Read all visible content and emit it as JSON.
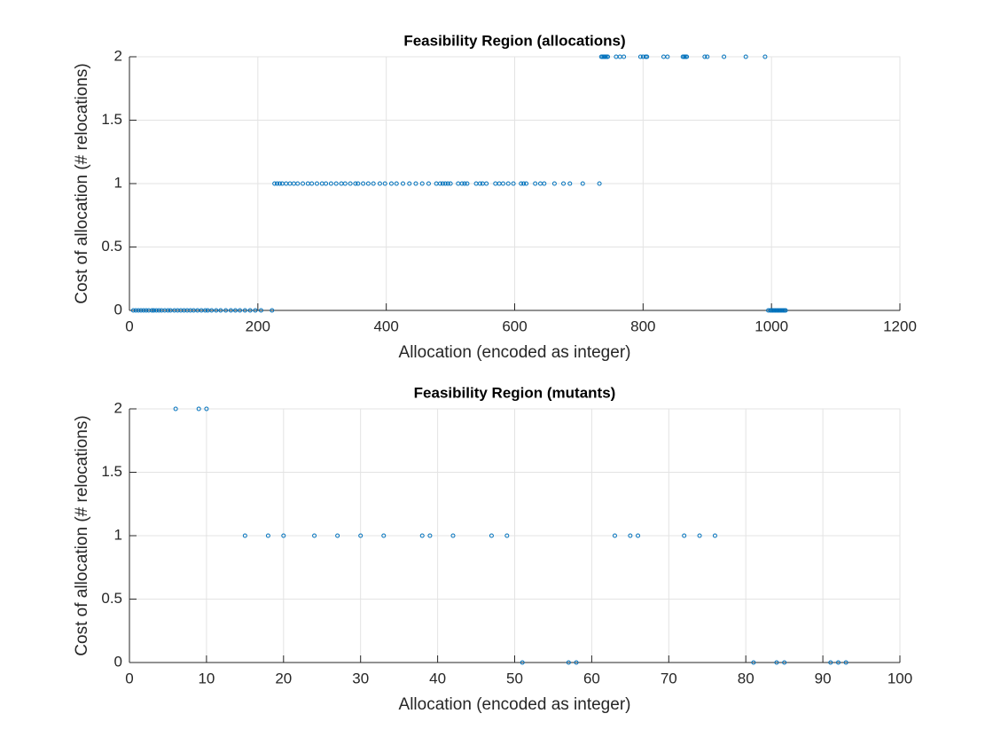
{
  "chart_data": [
    {
      "type": "scatter",
      "title": "Feasibility Region (allocations)",
      "x_label": "Allocation (encoded as integer)",
      "y_label": "Cost of allocation (# relocations)",
      "color": "#0072bd",
      "grid": true,
      "xlim": [
        0,
        1200
      ],
      "xticks": [
        0,
        200,
        400,
        600,
        800,
        1000,
        1200
      ],
      "ylim": [
        0,
        2
      ],
      "yticks": [
        0,
        0.5,
        1,
        1.5,
        2
      ],
      "x": [
        6,
        10,
        14,
        18,
        22,
        26,
        30,
        35,
        38,
        42,
        46,
        50,
        55,
        60,
        64,
        70,
        75,
        80,
        85,
        90,
        95,
        100,
        106,
        112,
        118,
        122,
        128,
        135,
        142,
        150,
        158,
        165,
        172,
        180,
        188,
        196,
        205,
        222,
        226,
        230,
        234,
        238,
        244,
        250,
        256,
        262,
        270,
        278,
        284,
        292,
        300,
        306,
        314,
        322,
        330,
        336,
        344,
        352,
        356,
        364,
        372,
        380,
        390,
        398,
        408,
        416,
        426,
        436,
        446,
        456,
        466,
        478,
        484,
        488,
        492,
        496,
        500,
        512,
        518,
        522,
        526,
        540,
        546,
        550,
        556,
        570,
        576,
        582,
        590,
        598,
        610,
        614,
        618,
        632,
        640,
        646,
        662,
        676,
        686,
        706,
        732,
        735,
        737,
        739,
        741,
        743,
        745,
        758,
        764,
        770,
        796,
        800,
        804,
        806,
        832,
        838,
        862,
        864,
        866,
        868,
        896,
        900,
        926,
        960,
        990,
        995,
        998,
        1000,
        1002,
        1004,
        1006,
        1008,
        1010,
        1012,
        1014,
        1016,
        1018,
        1020,
        1022
      ],
      "y": [
        0,
        0,
        0,
        0,
        0,
        0,
        0,
        0,
        0,
        0,
        0,
        0,
        0,
        0,
        0,
        0,
        0,
        0,
        0,
        0,
        0,
        0,
        0,
        0,
        0,
        0,
        0,
        0,
        0,
        0,
        0,
        0,
        0,
        0,
        0,
        0,
        0,
        0,
        1,
        1,
        1,
        1,
        1,
        1,
        1,
        1,
        1,
        1,
        1,
        1,
        1,
        1,
        1,
        1,
        1,
        1,
        1,
        1,
        1,
        1,
        1,
        1,
        1,
        1,
        1,
        1,
        1,
        1,
        1,
        1,
        1,
        1,
        1,
        1,
        1,
        1,
        1,
        1,
        1,
        1,
        1,
        1,
        1,
        1,
        1,
        1,
        1,
        1,
        1,
        1,
        1,
        1,
        1,
        1,
        1,
        1,
        1,
        1,
        1,
        1,
        1,
        2,
        2,
        2,
        2,
        2,
        2,
        2,
        2,
        2,
        2,
        2,
        2,
        2,
        2,
        2,
        2,
        2,
        2,
        2,
        2,
        2,
        2,
        2,
        2,
        0,
        0,
        0,
        0,
        0,
        0,
        0,
        0,
        0,
        0,
        0,
        0,
        0,
        0
      ]
    },
    {
      "type": "scatter",
      "title": "Feasibility Region (mutants)",
      "x_label": "Allocation (encoded as integer)",
      "y_label": "Cost of allocation (# relocations)",
      "color": "#0072bd",
      "grid": true,
      "xlim": [
        0,
        100
      ],
      "xticks": [
        0,
        10,
        20,
        30,
        40,
        50,
        60,
        70,
        80,
        90,
        100
      ],
      "ylim": [
        0,
        2
      ],
      "yticks": [
        0,
        0.5,
        1,
        1.5,
        2
      ],
      "x": [
        6,
        9,
        10,
        15,
        18,
        20,
        24,
        27,
        30,
        33,
        38,
        39,
        42,
        47,
        49,
        51,
        57,
        58,
        63,
        65,
        66,
        72,
        74,
        76,
        81,
        84,
        85,
        91,
        92,
        93
      ],
      "y": [
        2,
        2,
        2,
        1,
        1,
        1,
        1,
        1,
        1,
        1,
        1,
        1,
        1,
        1,
        1,
        0,
        0,
        0,
        1,
        1,
        1,
        1,
        1,
        1,
        0,
        0,
        0,
        0,
        0,
        0
      ]
    }
  ]
}
